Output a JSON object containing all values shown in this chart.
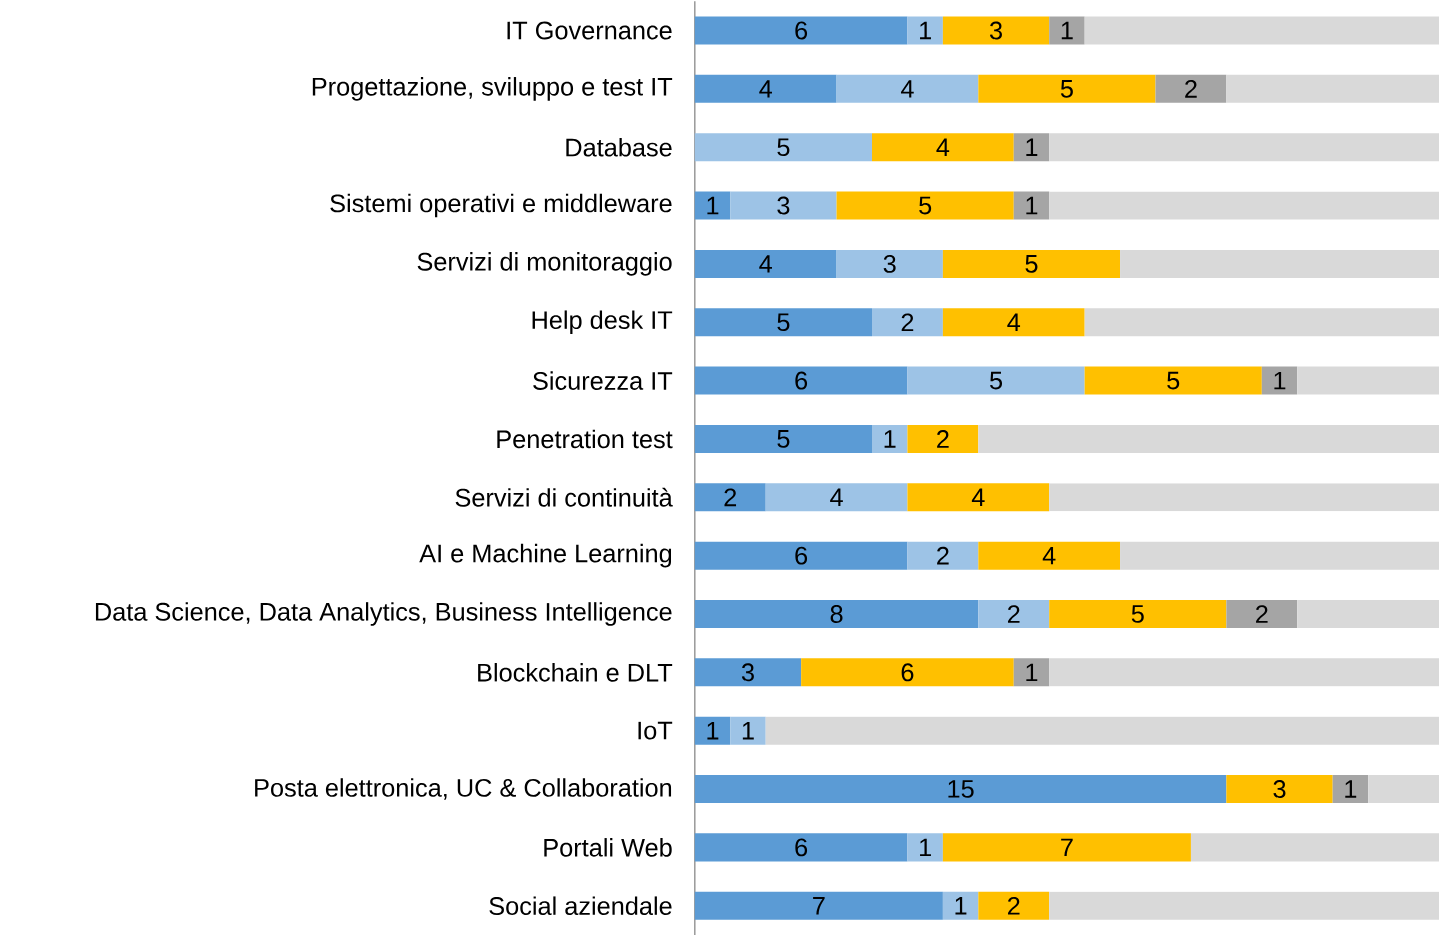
{
  "chart_data": {
    "type": "bar",
    "orientation": "horizontal",
    "stacked": true,
    "tick_labels": "y",
    "xlim": [
      0,
      21
    ],
    "categories": [
      "IT Governance",
      "Progettazione, sviluppo e test IT",
      "Database",
      "Sistemi operativi e middleware",
      "Servizi di monitoraggio",
      "Help desk IT",
      "Sicurezza IT",
      "Penetration test",
      "Servizi di continuità",
      "AI e Machine Learning",
      "Data Science, Data Analytics, Business Intelligence",
      "Blockchain e DLT",
      "IoT",
      "Posta elettronica, UC & Collaboration",
      "Portali Web",
      "Social aziendale"
    ],
    "series": [
      {
        "color": "#5b9bd5",
        "values": [
          6,
          4,
          null,
          1,
          4,
          5,
          6,
          5,
          2,
          6,
          8,
          3,
          1,
          15,
          6,
          7
        ],
        "value_labels": [
          "6",
          "4",
          null,
          "1",
          "4",
          "5",
          "6",
          "5",
          "2",
          "6",
          "8",
          "3",
          "1",
          "15",
          "6",
          "7"
        ]
      },
      {
        "color": "#9dc3e6",
        "values": [
          1,
          4,
          5,
          3,
          3,
          2,
          5,
          1,
          4,
          2,
          2,
          null,
          1,
          null,
          1,
          1
        ],
        "value_labels": [
          "1",
          "4",
          "5",
          "3",
          "3",
          "2",
          "5",
          "1",
          "4",
          "2",
          "2",
          null,
          "1",
          null,
          "1",
          "1"
        ]
      },
      {
        "color": "#ffc000",
        "values": [
          3,
          5,
          4,
          5,
          5,
          4,
          5,
          2,
          4,
          4,
          5,
          6,
          null,
          3,
          7,
          2
        ],
        "value_labels": [
          "3",
          "5",
          "4",
          "5",
          "5",
          "4",
          "5",
          "2",
          "4",
          "4",
          "5",
          "6",
          null,
          "3",
          "7",
          "2"
        ]
      },
      {
        "color": "#a5a5a5",
        "values": [
          1,
          2,
          1,
          1,
          null,
          null,
          1,
          null,
          null,
          null,
          2,
          1,
          null,
          1,
          null,
          null
        ],
        "value_labels": [
          "1",
          "2",
          "1",
          "1",
          null,
          null,
          "1",
          null,
          null,
          null,
          "2",
          "1",
          null,
          "1",
          null,
          null
        ]
      },
      {
        "color": "#d9d9d9",
        "values": [
          10,
          6,
          11,
          11,
          9,
          10,
          4,
          13,
          11,
          9,
          4,
          11,
          19,
          2,
          7,
          11
        ]
      }
    ]
  }
}
